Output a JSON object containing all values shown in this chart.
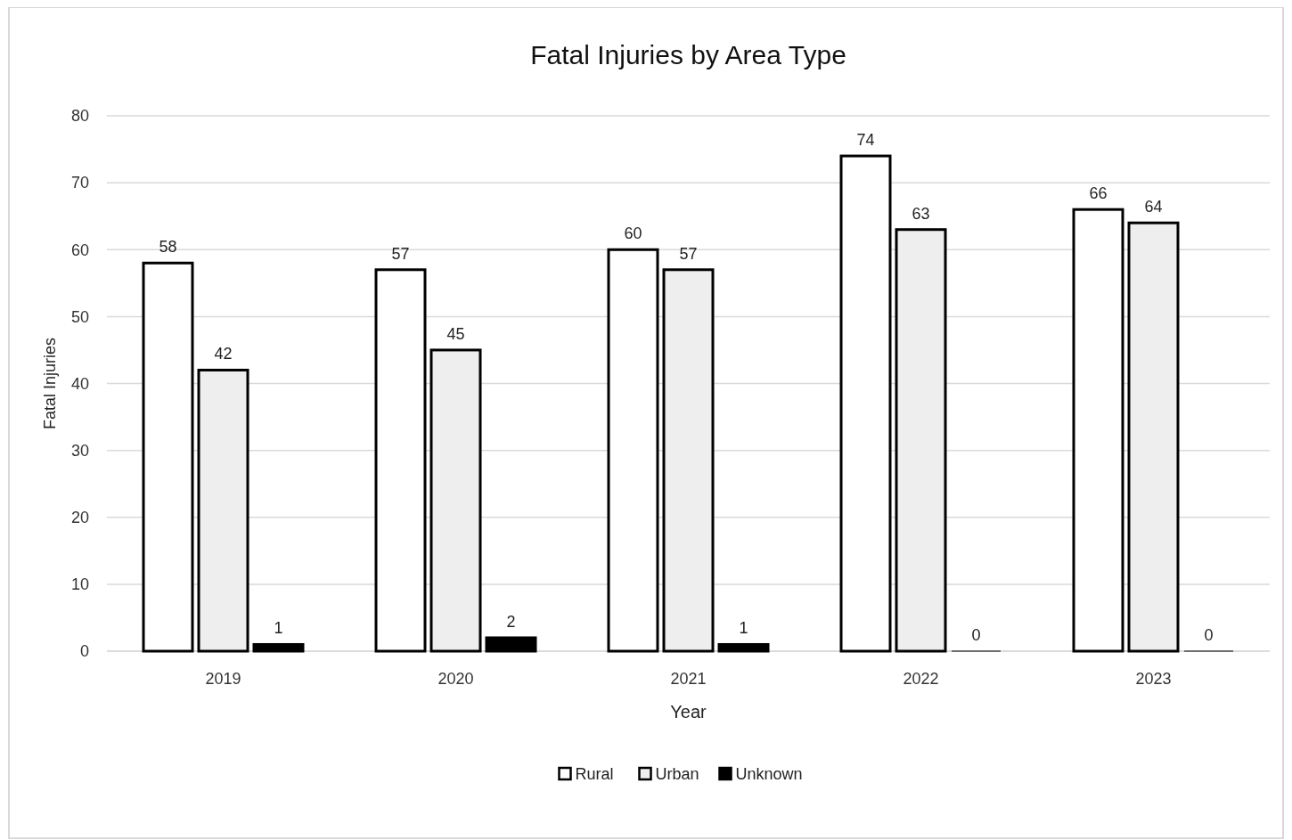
{
  "chart_data": {
    "type": "bar",
    "title": "Fatal Injuries by Area Type",
    "xlabel": "Year",
    "ylabel": "Fatal Injuries",
    "categories": [
      "2019",
      "2020",
      "2021",
      "2022",
      "2023"
    ],
    "series": [
      {
        "name": "Rural",
        "color": "#ffffff",
        "values": [
          58,
          57,
          60,
          74,
          66
        ]
      },
      {
        "name": "Urban",
        "color": "#eeeeee",
        "values": [
          42,
          45,
          57,
          63,
          64
        ]
      },
      {
        "name": "Unknown",
        "color": "#000000",
        "values": [
          1,
          2,
          1,
          0,
          0
        ]
      }
    ],
    "ylim": [
      0,
      80
    ],
    "yticks": [
      0,
      10,
      20,
      30,
      40,
      50,
      60,
      70,
      80
    ],
    "grid": "y",
    "legend": "bottom",
    "data_labels": true
  }
}
